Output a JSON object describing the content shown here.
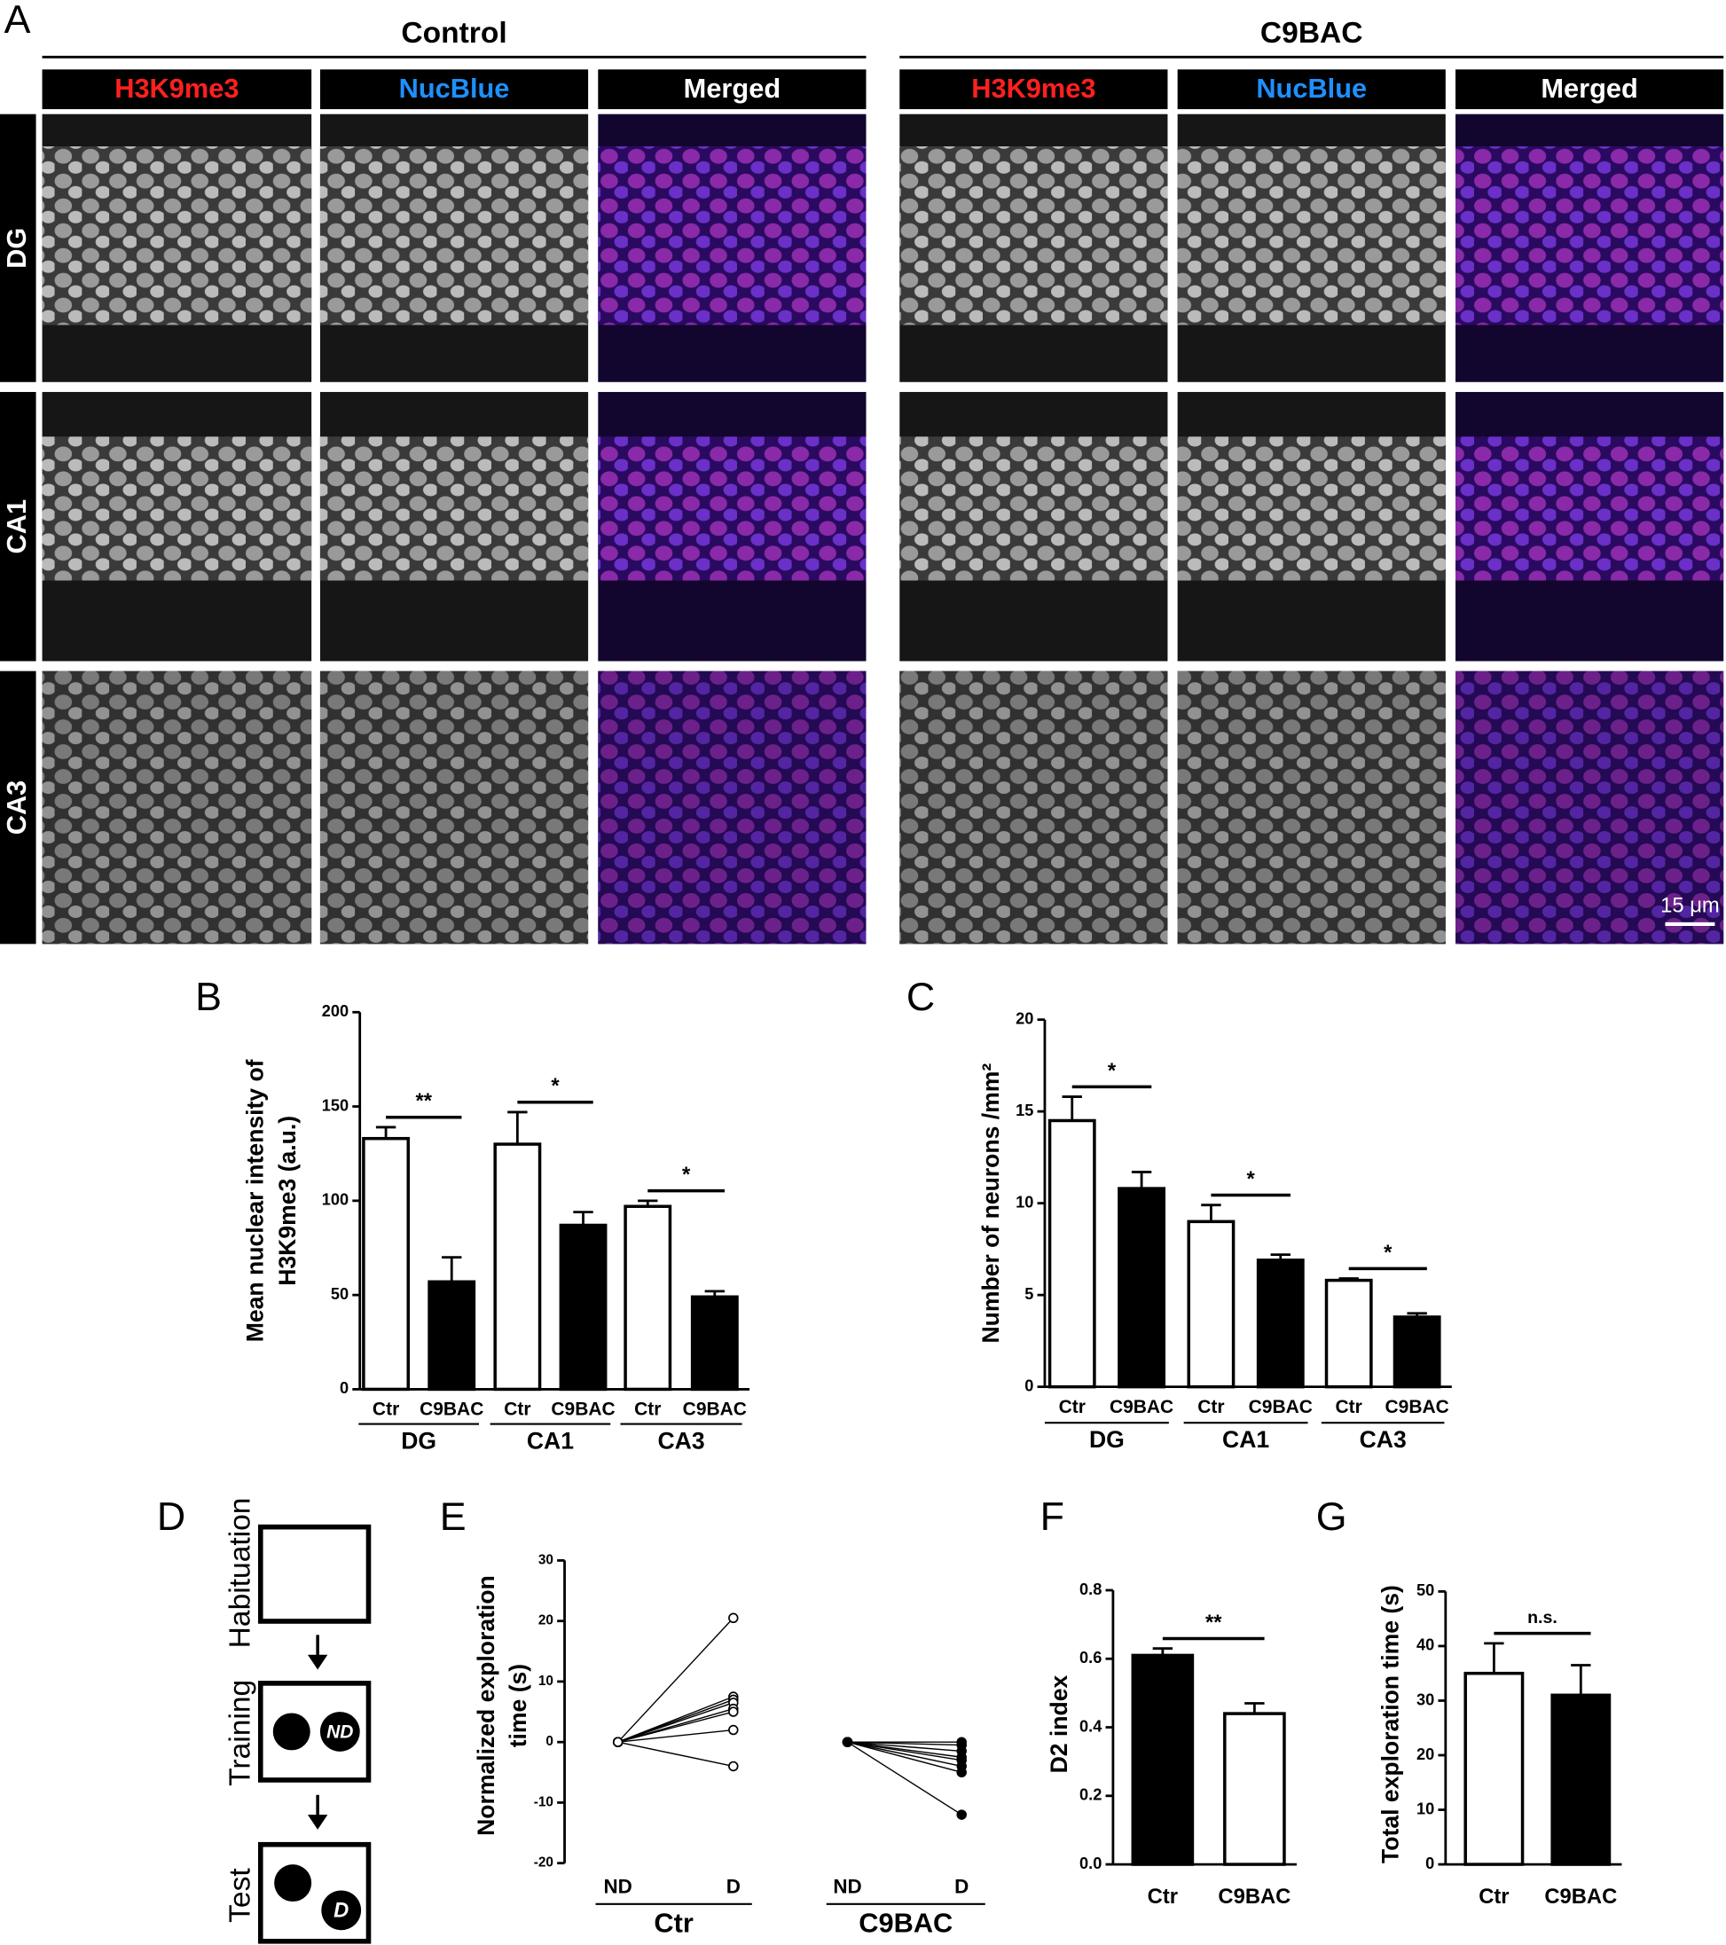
{
  "panel_labels": [
    "A",
    "B",
    "C",
    "D",
    "E",
    "F",
    "G"
  ],
  "panel_a": {
    "conditions": [
      "Control",
      "C9BAC"
    ],
    "channels": [
      "H3K9me3",
      "NucBlue",
      "Merged"
    ],
    "regions": [
      "DG",
      "CA1",
      "CA3"
    ],
    "scale_bar": "15 μm"
  },
  "panel_d": {
    "stages": [
      "Habituation",
      "Training",
      "Test"
    ],
    "objects": [
      "ND",
      "D"
    ]
  },
  "chart_data": [
    {
      "type": "bar",
      "y_label": [
        "Mean nuclear intensity of",
        "H3K9me3 (a.u.)"
      ],
      "categories": [
        "Ctr",
        "C9BAC",
        "Ctr",
        "C9BAC",
        "Ctr",
        "C9BAC"
      ],
      "groups": [
        "DG",
        "CA1",
        "CA3"
      ],
      "values": [
        133,
        57,
        130,
        87,
        97,
        49
      ],
      "errors": [
        6,
        13,
        17,
        7,
        3,
        3
      ],
      "colors": [
        "#ffffff",
        "#000000",
        "#ffffff",
        "#000000",
        "#ffffff",
        "#000000"
      ],
      "significance": [
        "**",
        "*",
        "*"
      ],
      "ylim": [
        0,
        200
      ],
      "yticks": [
        0,
        50,
        100,
        150,
        200
      ]
    },
    {
      "type": "bar",
      "y_label": [
        "Number of neurons /mm²"
      ],
      "categories": [
        "Ctr",
        "C9BAC",
        "Ctr",
        "C9BAC",
        "Ctr",
        "C9BAC"
      ],
      "groups": [
        "DG",
        "CA1",
        "CA3"
      ],
      "values": [
        14.5,
        10.8,
        9.0,
        6.9,
        5.8,
        3.8
      ],
      "errors": [
        1.3,
        0.9,
        0.9,
        0.3,
        0.1,
        0.2
      ],
      "colors": [
        "#ffffff",
        "#000000",
        "#ffffff",
        "#000000",
        "#ffffff",
        "#000000"
      ],
      "significance": [
        "*",
        "*",
        "*"
      ],
      "ylim": [
        0,
        20
      ],
      "yticks": [
        0,
        5,
        10,
        15,
        20
      ]
    },
    {
      "type": "paired",
      "y_label": [
        "Normalized exploration",
        "time (s)"
      ],
      "categories": [
        "ND",
        "D",
        "ND",
        "D"
      ],
      "groups": [
        "Ctr",
        "C9BAC"
      ],
      "series": [
        {
          "marker": "open",
          "nd": [
            0,
            0,
            0,
            0,
            0,
            0,
            0,
            0
          ],
          "d": [
            20.5,
            7.5,
            7,
            6.5,
            5.5,
            5,
            2,
            -4
          ]
        },
        {
          "marker": "filled",
          "nd": [
            0,
            0,
            0,
            0,
            0,
            0,
            0,
            0
          ],
          "d": [
            0,
            -0.5,
            -1.5,
            -2.5,
            -3,
            -4,
            -5,
            -12
          ]
        }
      ],
      "ylim": [
        -20,
        30
      ],
      "yticks": [
        -20,
        -10,
        0,
        10,
        20,
        30
      ]
    },
    {
      "type": "bar",
      "y_label": [
        "D2 index"
      ],
      "categories": [
        "Ctr",
        "C9BAC"
      ],
      "values": [
        0.61,
        0.44
      ],
      "errors": [
        0.02,
        0.03
      ],
      "colors": [
        "#000000",
        "#ffffff"
      ],
      "significance": [
        "**"
      ],
      "ylim": [
        0,
        0.8
      ],
      "yticks": [
        {
          "value": 0,
          "label": "0.0"
        },
        0.2,
        0.4,
        0.6,
        0.8
      ]
    },
    {
      "type": "bar",
      "y_label": [
        "Total exploration time (s)"
      ],
      "categories": [
        "Ctr",
        "C9BAC"
      ],
      "values": [
        35,
        31
      ],
      "errors": [
        5.5,
        5.5
      ],
      "colors": [
        "#ffffff",
        "#000000"
      ],
      "significance": [
        "n.s."
      ],
      "ylim": [
        0,
        50
      ],
      "yticks": [
        0,
        10,
        20,
        30,
        40,
        50
      ]
    }
  ]
}
